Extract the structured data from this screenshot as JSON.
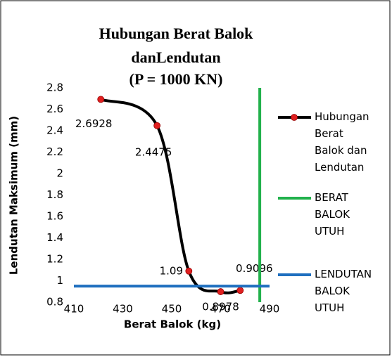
{
  "chart_data": {
    "type": "line",
    "title": [
      "Hubungan Berat Balok",
      "danLendutan",
      "(P = 1000 KN)"
    ],
    "x_label": "Berat Balok (kg)",
    "y_label": "Lendutan Maksimum (mm)",
    "xlim": [
      410,
      490
    ],
    "xticks": [
      410,
      430,
      450,
      470,
      490
    ],
    "ylim": [
      0.8,
      2.8
    ],
    "yticks": [
      0.8,
      1,
      1.2,
      1.4,
      1.6,
      1.8,
      2,
      2.2,
      2.4,
      2.6,
      2.8
    ],
    "grid": false,
    "legend": "right",
    "series": [
      {
        "name": "Hubungan Berat Balok dan Lendutan",
        "color": "#000000",
        "marker_color": "#e02020",
        "smooth": true,
        "x": [
          421,
          444,
          457,
          470,
          478
        ],
        "values": [
          2.6928,
          2.4475,
          1.09,
          0.8978,
          0.9096
        ]
      },
      {
        "name": "BERAT BALOK UTUH",
        "color": "#22b14c",
        "x": [
          486,
          486
        ],
        "values": [
          0.8,
          2.8
        ]
      },
      {
        "name": "LENDUTAN BALOK UTUH",
        "color": "#1f6fbf",
        "x": [
          410,
          490
        ],
        "values": [
          0.95,
          0.95
        ]
      }
    ]
  }
}
